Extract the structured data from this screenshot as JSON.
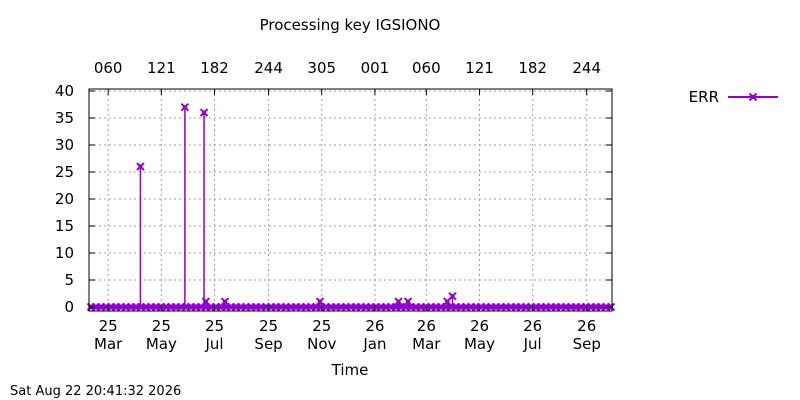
{
  "chart_data": {
    "type": "line",
    "title": "Processing key IGSIONO",
    "xlabel": "Time",
    "ylabel": "",
    "ylim": [
      0,
      40
    ],
    "y_ticks": [
      0,
      5,
      10,
      15,
      20,
      25,
      30,
      35,
      40
    ],
    "x_range": [
      "2025-02-07",
      "2026-09-30"
    ],
    "x_ticks_bottom": [
      {
        "date": "2025-03-01",
        "line1": "25",
        "line2": "Mar"
      },
      {
        "date": "2025-05-01",
        "line1": "25",
        "line2": "May"
      },
      {
        "date": "2025-07-01",
        "line1": "25",
        "line2": "Jul"
      },
      {
        "date": "2025-09-01",
        "line1": "25",
        "line2": "Sep"
      },
      {
        "date": "2025-11-01",
        "line1": "25",
        "line2": "Nov"
      },
      {
        "date": "2026-01-01",
        "line1": "26",
        "line2": "Jan"
      },
      {
        "date": "2026-03-01",
        "line1": "26",
        "line2": "Mar"
      },
      {
        "date": "2026-05-01",
        "line1": "26",
        "line2": "May"
      },
      {
        "date": "2026-07-01",
        "line1": "26",
        "line2": "Jul"
      },
      {
        "date": "2026-09-01",
        "line1": "26",
        "line2": "Sep"
      }
    ],
    "x_ticks_top": [
      {
        "date": "2025-03-01",
        "label": "060"
      },
      {
        "date": "2025-05-01",
        "label": "121"
      },
      {
        "date": "2025-07-01",
        "label": "182"
      },
      {
        "date": "2025-09-01",
        "label": "244"
      },
      {
        "date": "2025-11-01",
        "label": "305"
      },
      {
        "date": "2026-01-01",
        "label": "001"
      },
      {
        "date": "2026-03-01",
        "label": "060"
      },
      {
        "date": "2026-05-01",
        "label": "121"
      },
      {
        "date": "2026-07-01",
        "label": "182"
      },
      {
        "date": "2026-09-01",
        "label": "244"
      }
    ],
    "grid": true,
    "legend_position": "top-right",
    "series": [
      {
        "name": "ERR",
        "color": "#9400d3",
        "points": [
          {
            "x": "2025-04-07",
            "y": 26
          },
          {
            "x": "2025-05-28",
            "y": 37
          },
          {
            "x": "2025-06-19",
            "y": 36
          },
          {
            "x": "2025-06-21",
            "y": 1
          },
          {
            "x": "2025-07-13",
            "y": 1
          },
          {
            "x": "2025-10-30",
            "y": 1
          },
          {
            "x": "2026-01-28",
            "y": 1
          },
          {
            "x": "2026-02-08",
            "y": 1
          },
          {
            "x": "2026-03-25",
            "y": 1
          },
          {
            "x": "2026-03-31",
            "y": 2
          }
        ],
        "baseline": {
          "from": "2025-02-07",
          "to": "2026-09-30",
          "y": 0
        }
      }
    ]
  },
  "footer": {
    "timestamp": "Sat Aug 22 20:41:32 2026"
  }
}
